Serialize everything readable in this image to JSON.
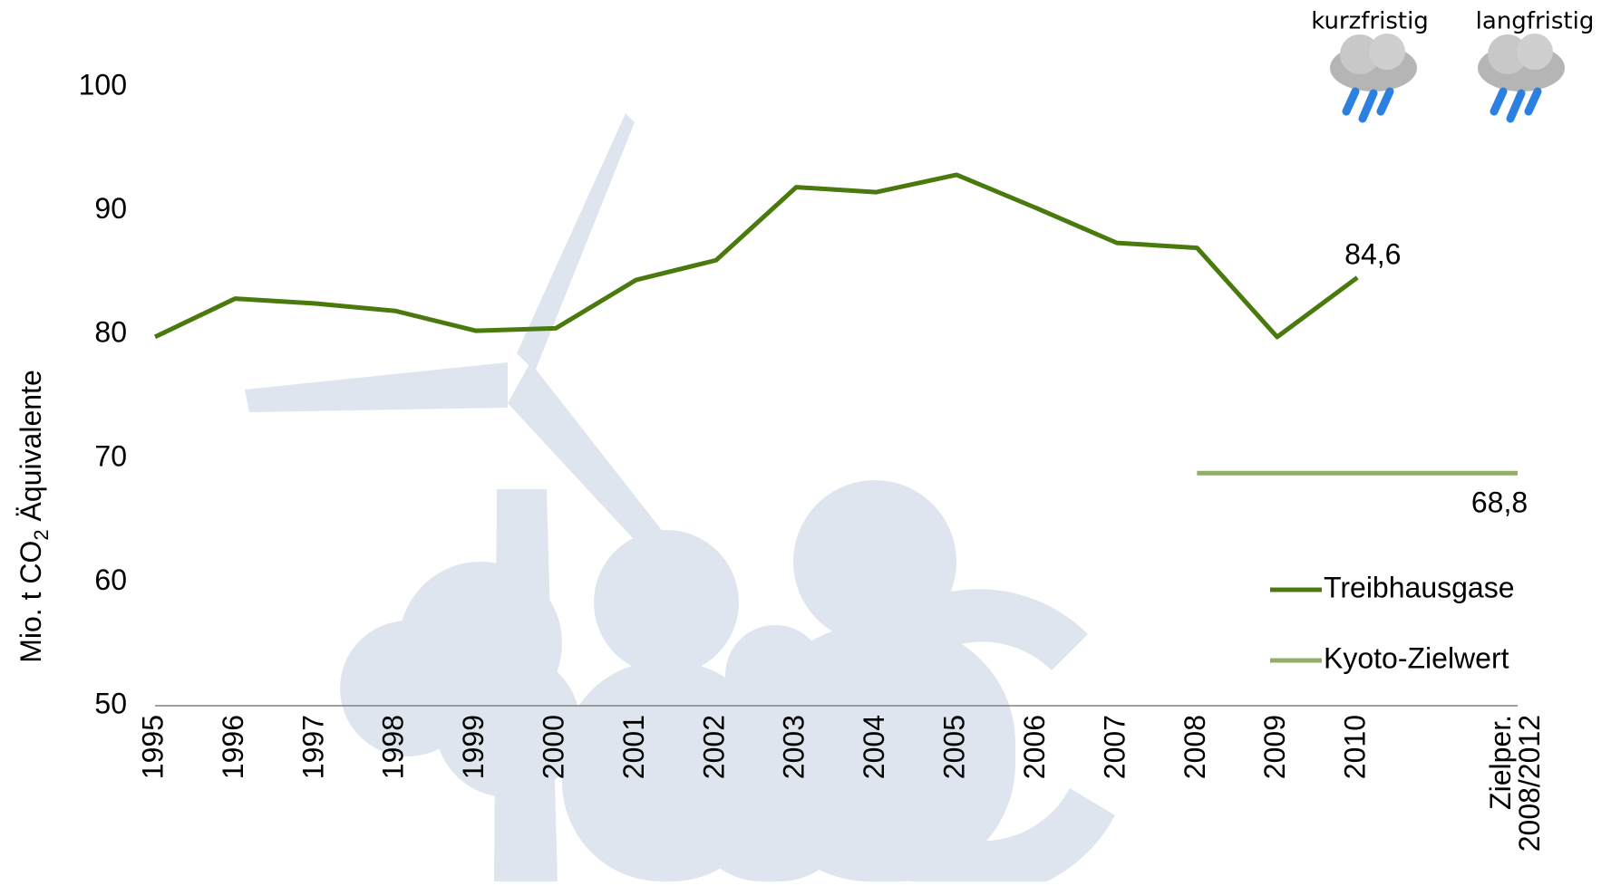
{
  "chart_data": {
    "type": "line",
    "y_label": [
      "Mio. t CO",
      "2",
      " Äquivalente"
    ],
    "categories": [
      "1995",
      "1996",
      "1997",
      "1998",
      "1999",
      "2000",
      "2001",
      "2002",
      "2003",
      "2004",
      "2005",
      "2006",
      "2007",
      "2008",
      "2009",
      "2010",
      null,
      "Zielper.\n2008/2012"
    ],
    "series": [
      {
        "name": "Treibhausgase",
        "color": "#4a7a0e",
        "values": [
          79.8,
          82.9,
          82.5,
          81.9,
          80.3,
          80.5,
          84.4,
          86.0,
          91.9,
          91.5,
          92.9,
          90.2,
          87.4,
          87.0,
          79.8,
          84.6,
          null,
          null
        ],
        "value_labels": [
          null,
          null,
          null,
          null,
          null,
          null,
          null,
          null,
          null,
          null,
          null,
          null,
          null,
          null,
          null,
          "84,6",
          null,
          null
        ]
      },
      {
        "name": "Kyoto-Zielwert",
        "color": "#93ae6b",
        "values": [
          null,
          null,
          null,
          null,
          null,
          null,
          null,
          null,
          null,
          null,
          null,
          null,
          null,
          68.8,
          68.8,
          68.8,
          68.8,
          68.8
        ],
        "value_labels": [
          null,
          null,
          null,
          null,
          null,
          null,
          null,
          null,
          null,
          null,
          null,
          null,
          null,
          null,
          null,
          null,
          null,
          "68,8"
        ]
      }
    ],
    "ylim": [
      50,
      100
    ],
    "yticks": [
      50,
      60,
      70,
      80,
      90,
      100
    ],
    "grid": false,
    "legend": "right",
    "annotations": [
      "kurzfristig",
      "langfristig"
    ]
  }
}
